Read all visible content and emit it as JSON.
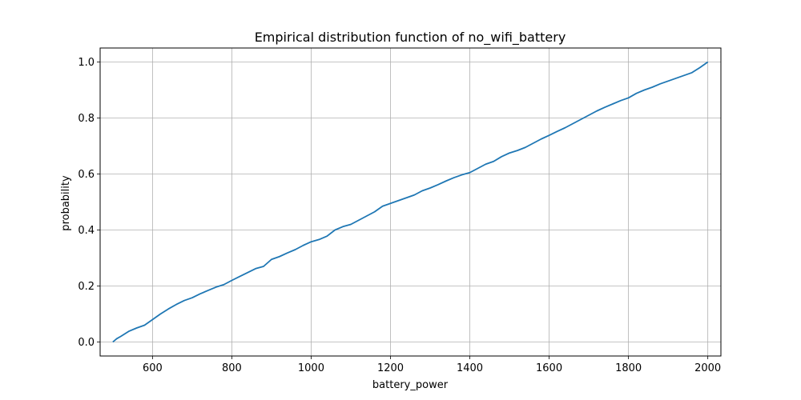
{
  "chart_data": {
    "type": "line",
    "title": "Empirical distribution function of no_wifi_battery",
    "xlabel": "battery_power",
    "ylabel": "probability",
    "xlim": [
      468,
      2033
    ],
    "ylim": [
      -0.05,
      1.05
    ],
    "xticks": [
      600,
      800,
      1000,
      1200,
      1400,
      1600,
      1800,
      2000
    ],
    "yticks": [
      0.0,
      0.2,
      0.4,
      0.6,
      0.8,
      1.0
    ],
    "xtick_labels": [
      "600",
      "800",
      "1000",
      "1200",
      "1400",
      "1600",
      "1800",
      "2000"
    ],
    "ytick_labels": [
      "0.0",
      "0.2",
      "0.4",
      "0.6",
      "0.8",
      "1.0"
    ],
    "grid": true,
    "series": [
      {
        "color": "#1f77b4",
        "x": [
          500,
          510,
          520,
          540,
          560,
          580,
          600,
          620,
          640,
          660,
          680,
          700,
          720,
          740,
          760,
          780,
          800,
          820,
          840,
          860,
          880,
          900,
          920,
          940,
          960,
          980,
          1000,
          1020,
          1040,
          1060,
          1080,
          1100,
          1120,
          1140,
          1160,
          1180,
          1200,
          1220,
          1240,
          1260,
          1280,
          1300,
          1320,
          1340,
          1360,
          1380,
          1400,
          1420,
          1440,
          1460,
          1480,
          1500,
          1520,
          1540,
          1560,
          1580,
          1600,
          1620,
          1640,
          1660,
          1680,
          1700,
          1720,
          1740,
          1760,
          1780,
          1800,
          1820,
          1840,
          1860,
          1880,
          1900,
          1920,
          1940,
          1960,
          1980,
          2000
        ],
        "y": [
          0.0,
          0.012,
          0.02,
          0.038,
          0.05,
          0.06,
          0.08,
          0.1,
          0.118,
          0.134,
          0.148,
          0.158,
          0.172,
          0.184,
          0.196,
          0.205,
          0.22,
          0.234,
          0.248,
          0.262,
          0.27,
          0.295,
          0.305,
          0.318,
          0.33,
          0.345,
          0.358,
          0.366,
          0.378,
          0.4,
          0.412,
          0.42,
          0.435,
          0.45,
          0.465,
          0.485,
          0.495,
          0.505,
          0.515,
          0.525,
          0.54,
          0.55,
          0.562,
          0.575,
          0.587,
          0.597,
          0.605,
          0.62,
          0.635,
          0.645,
          0.662,
          0.675,
          0.684,
          0.695,
          0.71,
          0.725,
          0.738,
          0.752,
          0.765,
          0.78,
          0.795,
          0.81,
          0.825,
          0.838,
          0.85,
          0.862,
          0.872,
          0.888,
          0.9,
          0.91,
          0.922,
          0.932,
          0.942,
          0.952,
          0.962,
          0.98,
          1.0
        ]
      }
    ]
  }
}
